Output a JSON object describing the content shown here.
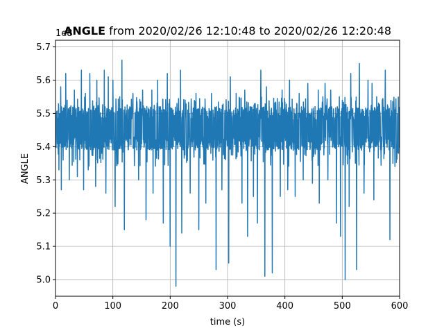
{
  "chart_data": {
    "type": "line",
    "title_bold": "ANGLE",
    "title_rest": " from 2020/02/26 12:10:48 to 2020/02/26 12:20:48",
    "xlabel": "time (s)",
    "ylabel": "ANGLE",
    "y_offset_text": "1e8",
    "xlim": [
      0,
      600
    ],
    "ylim": [
      4.95,
      5.72
    ],
    "x_ticks": [
      "0",
      "100",
      "200",
      "300",
      "400",
      "500",
      "600"
    ],
    "y_ticks": [
      "5.0",
      "5.1",
      "5.2",
      "5.3",
      "5.4",
      "5.5",
      "5.6",
      "5.7"
    ],
    "grid": true,
    "series_color": "#1f77b4",
    "baseline": {
      "center": 5.45,
      "upper": 5.52,
      "lower": 5.39
    },
    "spikes_up": [
      [
        9,
        5.58
      ],
      [
        18,
        5.62
      ],
      [
        33,
        5.57
      ],
      [
        45,
        5.63
      ],
      [
        52,
        5.56
      ],
      [
        60,
        5.62
      ],
      [
        72,
        5.6
      ],
      [
        85,
        5.63
      ],
      [
        92,
        5.61
      ],
      [
        100,
        5.6
      ],
      [
        112,
        5.55
      ],
      [
        116,
        5.66
      ],
      [
        135,
        5.56
      ],
      [
        152,
        5.57
      ],
      [
        168,
        5.57
      ],
      [
        178,
        5.6
      ],
      [
        195,
        5.62
      ],
      [
        210,
        5.56
      ],
      [
        218,
        5.63
      ],
      [
        235,
        5.59
      ],
      [
        245,
        5.56
      ],
      [
        262,
        5.57
      ],
      [
        272,
        5.56
      ],
      [
        290,
        5.58
      ],
      [
        305,
        5.61
      ],
      [
        315,
        5.56
      ],
      [
        330,
        5.57
      ],
      [
        345,
        5.55
      ],
      [
        358,
        5.63
      ],
      [
        368,
        5.58
      ],
      [
        378,
        5.57
      ],
      [
        395,
        5.57
      ],
      [
        408,
        5.6
      ],
      [
        425,
        5.56
      ],
      [
        440,
        5.59
      ],
      [
        458,
        5.57
      ],
      [
        470,
        5.59
      ],
      [
        480,
        5.57
      ],
      [
        495,
        5.55
      ],
      [
        505,
        5.6
      ],
      [
        515,
        5.62
      ],
      [
        530,
        5.65
      ],
      [
        545,
        5.6
      ],
      [
        552,
        5.59
      ],
      [
        560,
        5.55
      ],
      [
        575,
        5.63
      ]
    ],
    "spikes_down": [
      [
        6,
        5.33
      ],
      [
        10,
        5.27
      ],
      [
        24,
        5.3
      ],
      [
        38,
        5.31
      ],
      [
        49,
        5.27
      ],
      [
        57,
        5.33
      ],
      [
        70,
        5.28
      ],
      [
        88,
        5.26
      ],
      [
        104,
        5.22
      ],
      [
        120,
        5.15
      ],
      [
        145,
        5.3
      ],
      [
        158,
        5.18
      ],
      [
        170,
        5.26
      ],
      [
        188,
        5.17
      ],
      [
        200,
        5.1
      ],
      [
        210,
        4.98
      ],
      [
        220,
        5.14
      ],
      [
        235,
        5.26
      ],
      [
        250,
        5.15
      ],
      [
        262,
        5.23
      ],
      [
        280,
        5.03
      ],
      [
        290,
        5.27
      ],
      [
        302,
        5.05
      ],
      [
        325,
        5.23
      ],
      [
        335,
        5.13
      ],
      [
        345,
        5.25
      ],
      [
        352,
        5.17
      ],
      [
        365,
        5.01
      ],
      [
        378,
        5.02
      ],
      [
        392,
        5.25
      ],
      [
        405,
        5.27
      ],
      [
        418,
        5.25
      ],
      [
        432,
        5.3
      ],
      [
        448,
        5.29
      ],
      [
        460,
        5.23
      ],
      [
        475,
        5.3
      ],
      [
        490,
        5.17
      ],
      [
        497,
        5.13
      ],
      [
        505,
        5.0
      ],
      [
        512,
        5.22
      ],
      [
        525,
        5.03
      ],
      [
        538,
        5.26
      ],
      [
        555,
        5.24
      ],
      [
        583,
        5.12
      ],
      [
        592,
        5.34
      ],
      [
        598,
        5.38
      ]
    ]
  }
}
